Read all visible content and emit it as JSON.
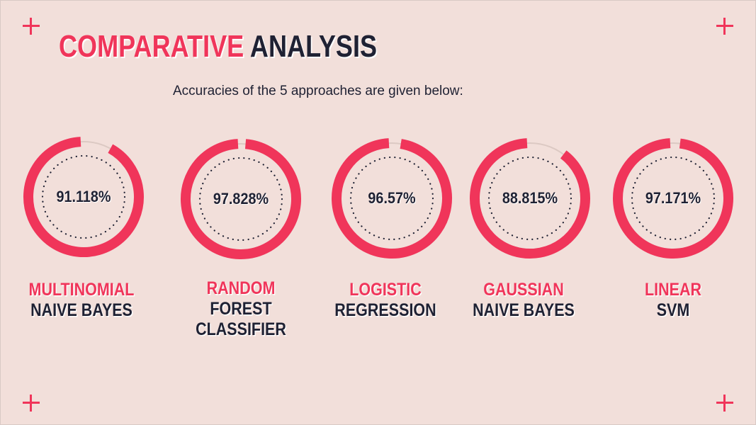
{
  "title": {
    "word1": "COMPARATIVE",
    "word2": "ANALYSIS"
  },
  "subtitle": "Accuracies of the 5 approaches are given below:",
  "colors": {
    "accent": "#f0355a",
    "dark": "#1f2133",
    "background": "#f2dfda",
    "track": "#dcc9c3"
  },
  "approaches": [
    {
      "accuracy_label": "91.118%",
      "accuracy": 91.118,
      "label_line1": "MULTINOMIAL",
      "label_line2": "NAIVE BAYES",
      "label_line3": ""
    },
    {
      "accuracy_label": "97.828%",
      "accuracy": 97.828,
      "label_line1": "RANDOM",
      "label_line2": "FOREST",
      "label_line3": "CLASSIFIER"
    },
    {
      "accuracy_label": "96.57%",
      "accuracy": 96.57,
      "label_line1": "LOGISTIC",
      "label_line2": "REGRESSION",
      "label_line3": ""
    },
    {
      "accuracy_label": "88.815%",
      "accuracy": 88.815,
      "label_line1": "GAUSSIAN",
      "label_line2": "NAIVE BAYES",
      "label_line3": ""
    },
    {
      "accuracy_label": "97.171%",
      "accuracy": 97.171,
      "label_line1": "LINEAR",
      "label_line2": "SVM",
      "label_line3": ""
    }
  ]
}
